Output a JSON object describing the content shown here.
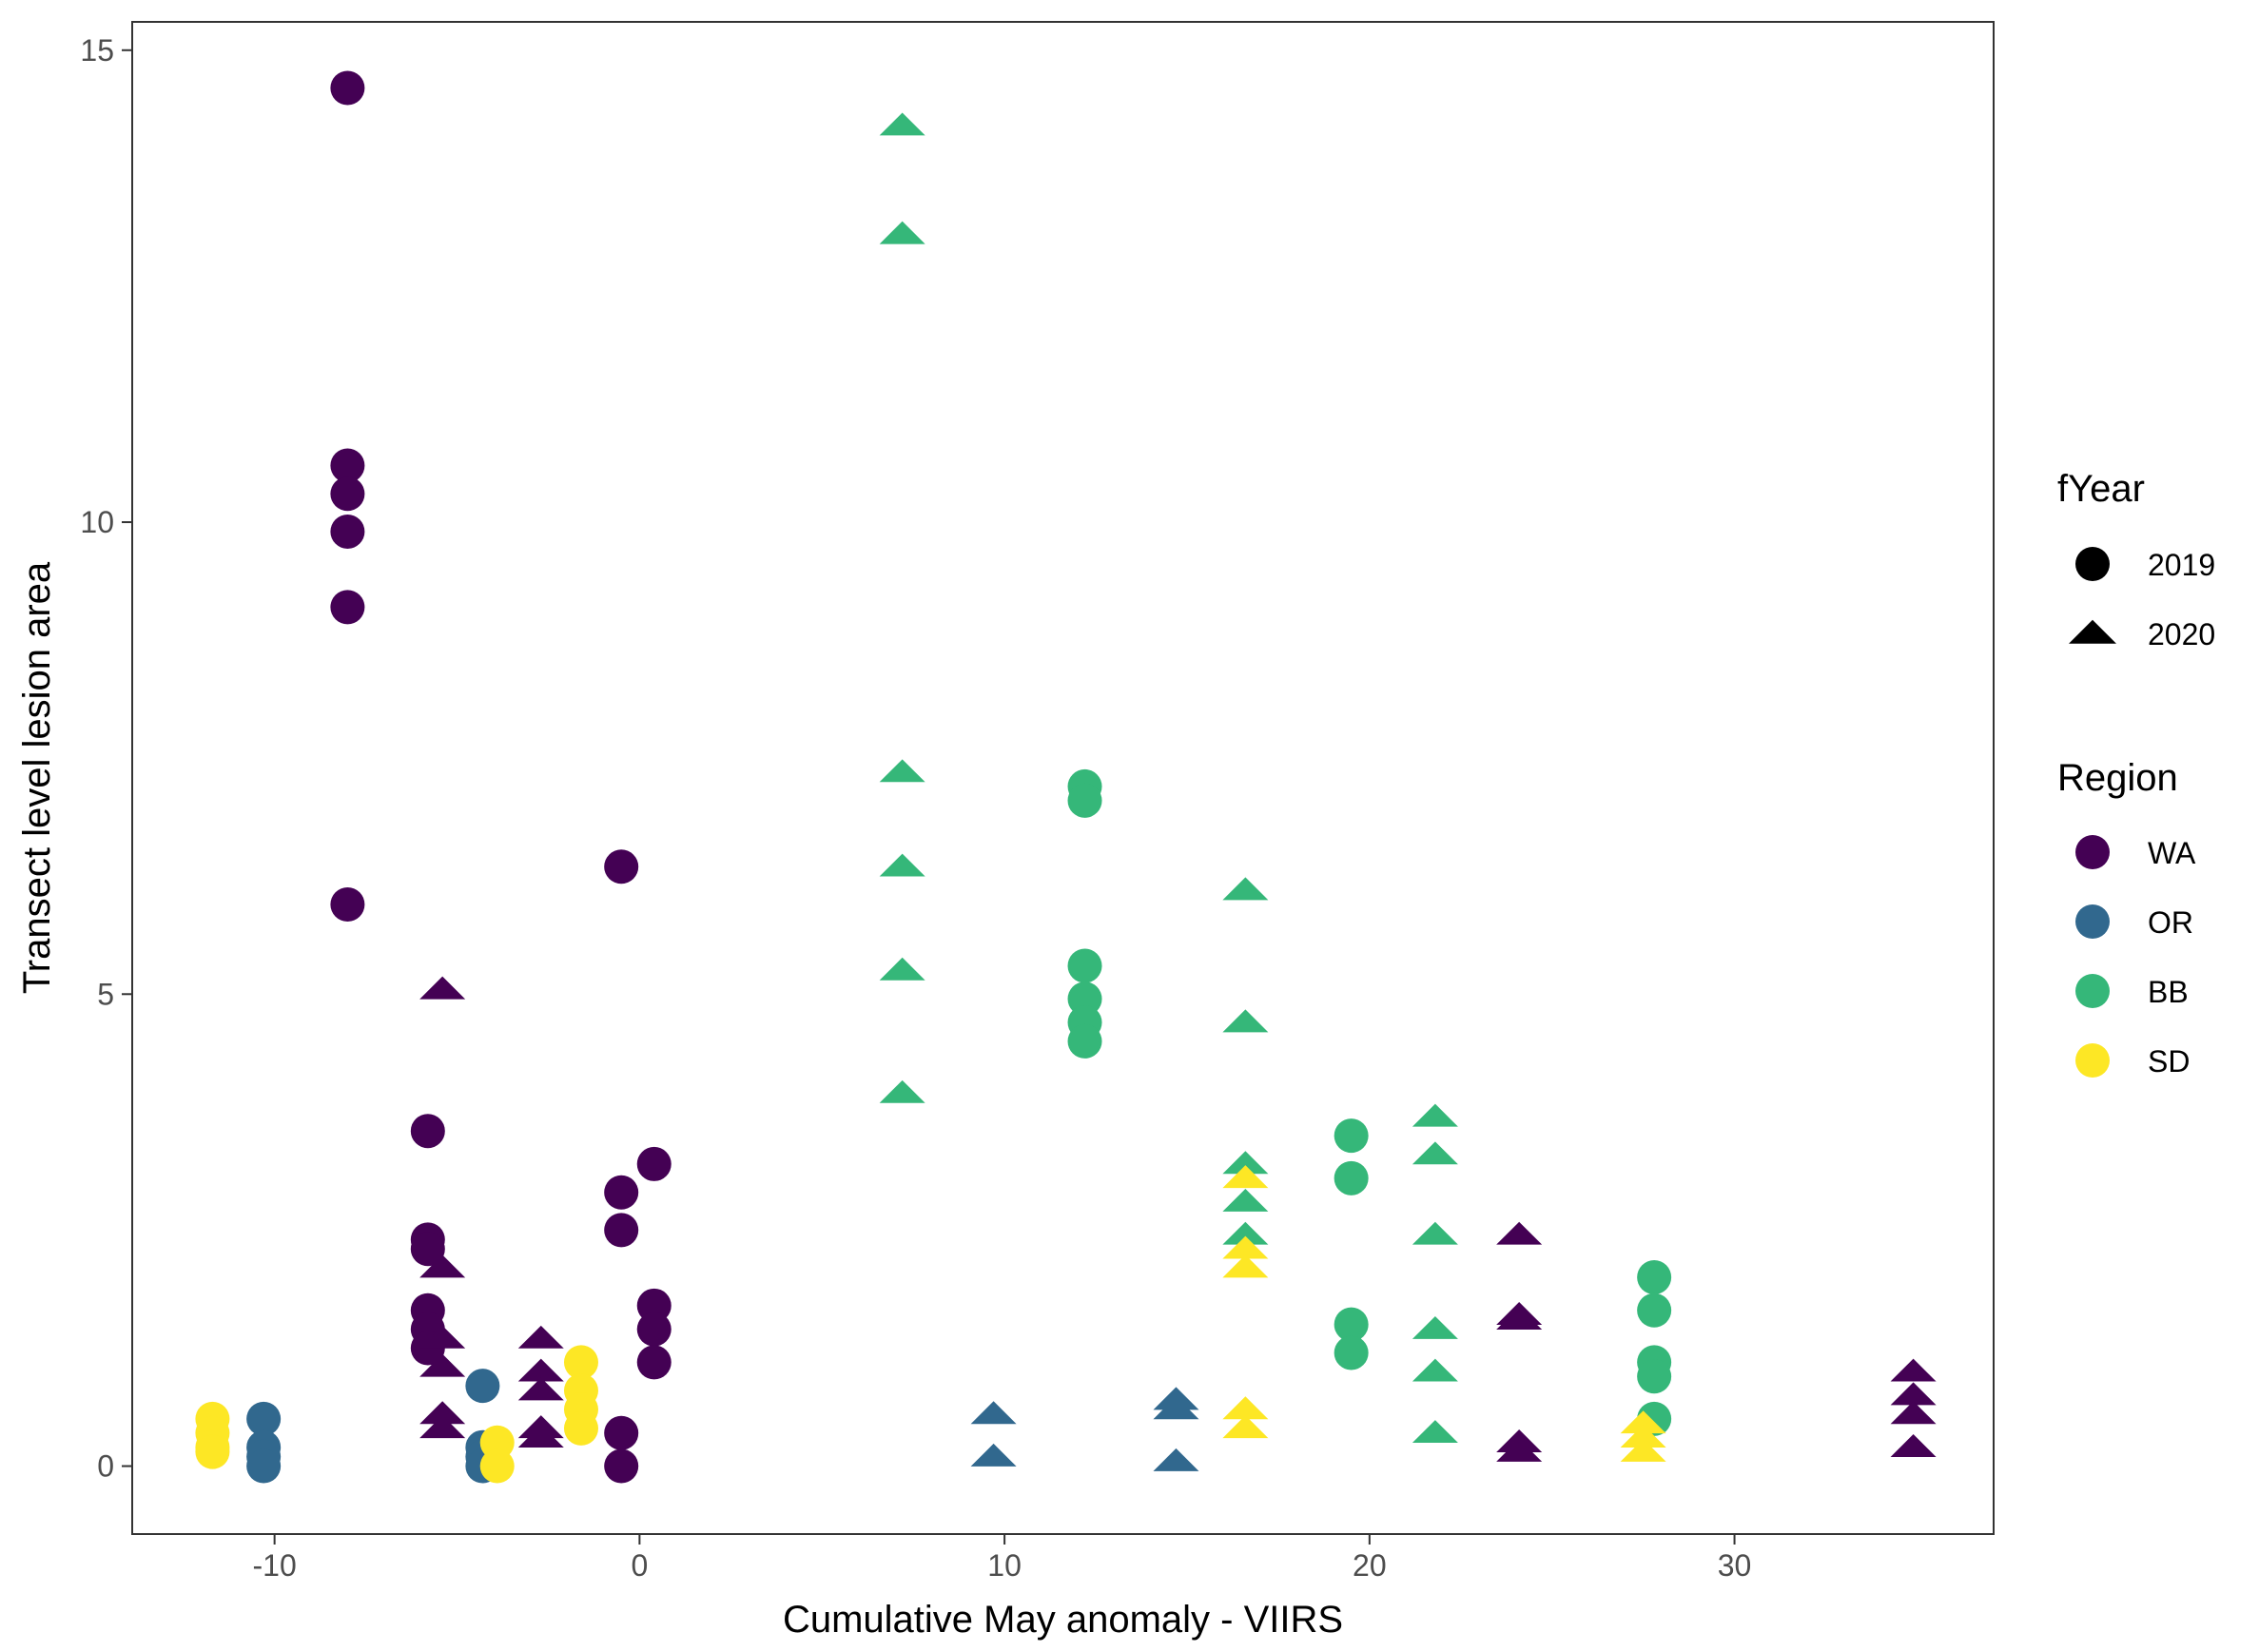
{
  "chart_data": {
    "type": "scatter",
    "xlabel": "Cumulative May anomaly - VIIRS",
    "ylabel": "Transect level lesion area",
    "xlim": [
      -13.9,
      37.1
    ],
    "ylim": [
      -0.72,
      15.3
    ],
    "x_ticks": [
      -10,
      0,
      10,
      20,
      30
    ],
    "y_ticks": [
      0,
      5,
      10,
      15
    ],
    "grid": false,
    "legend": {
      "placement": "right",
      "shape_title": "fYear",
      "shape_items": [
        {
          "label": "2019",
          "shape": "circle"
        },
        {
          "label": "2020",
          "shape": "triangle"
        }
      ],
      "color_title": "Region",
      "color_items": [
        {
          "label": "WA",
          "color": "#440154"
        },
        {
          "label": "OR",
          "color": "#31688E"
        },
        {
          "label": "BB",
          "color": "#35B779"
        },
        {
          "label": "SD",
          "color": "#FDE725"
        }
      ]
    },
    "series": [
      {
        "region": "WA",
        "year": "2019",
        "color": "#440154",
        "shape": "circle",
        "points": [
          [
            -8,
            14.6
          ],
          [
            -8,
            10.6
          ],
          [
            -8,
            10.3
          ],
          [
            -8,
            9.9
          ],
          [
            -8,
            9.1
          ],
          [
            -8,
            5.95
          ],
          [
            -5.8,
            3.55
          ],
          [
            -5.8,
            2.4
          ],
          [
            -5.8,
            2.3
          ],
          [
            -5.8,
            1.65
          ],
          [
            -5.8,
            1.45
          ],
          [
            -5.8,
            1.25
          ],
          [
            -0.5,
            6.35
          ],
          [
            -0.5,
            2.9
          ],
          [
            -0.5,
            2.5
          ],
          [
            -0.5,
            0.35
          ],
          [
            -0.5,
            0.0
          ],
          [
            0.4,
            3.2
          ],
          [
            0.4,
            1.7
          ],
          [
            0.4,
            1.45
          ],
          [
            0.4,
            1.1
          ]
        ]
      },
      {
        "region": "WA",
        "year": "2020",
        "color": "#440154",
        "shape": "triangle",
        "points": [
          [
            -5.4,
            5.05
          ],
          [
            -5.4,
            2.1
          ],
          [
            -5.4,
            1.35
          ],
          [
            -5.4,
            1.05
          ],
          [
            -5.4,
            0.55
          ],
          [
            -5.4,
            0.4
          ],
          [
            -2.7,
            1.35
          ],
          [
            -2.7,
            1.0
          ],
          [
            -2.7,
            0.8
          ],
          [
            -2.7,
            0.4
          ],
          [
            -2.7,
            0.3
          ],
          [
            24.1,
            2.45
          ],
          [
            24.1,
            1.6
          ],
          [
            24.1,
            1.55
          ],
          [
            24.1,
            0.25
          ],
          [
            24.1,
            0.15
          ],
          [
            34.9,
            1.0
          ],
          [
            34.9,
            0.75
          ],
          [
            34.9,
            0.55
          ],
          [
            34.9,
            0.2
          ]
        ]
      },
      {
        "region": "OR",
        "year": "2019",
        "color": "#31688E",
        "shape": "circle",
        "points": [
          [
            -10.3,
            0.5
          ],
          [
            -10.3,
            0.2
          ],
          [
            -10.3,
            0.1
          ],
          [
            -10.3,
            0.0
          ],
          [
            -4.3,
            0.85
          ],
          [
            -4.3,
            0.2
          ],
          [
            -4.3,
            0.1
          ],
          [
            -4.3,
            0.0
          ]
        ]
      },
      {
        "region": "OR",
        "year": "2020",
        "color": "#31688E",
        "shape": "triangle",
        "points": [
          [
            9.7,
            0.55
          ],
          [
            9.7,
            0.1
          ],
          [
            14.7,
            0.7
          ],
          [
            14.7,
            0.6
          ],
          [
            14.7,
            0.05
          ]
        ]
      },
      {
        "region": "BB",
        "year": "2019",
        "color": "#35B779",
        "shape": "circle",
        "points": [
          [
            12.2,
            7.2
          ],
          [
            12.2,
            7.05
          ],
          [
            12.2,
            5.3
          ],
          [
            12.2,
            4.95
          ],
          [
            12.2,
            4.7
          ],
          [
            12.2,
            4.5
          ],
          [
            19.5,
            3.5
          ],
          [
            19.5,
            3.05
          ],
          [
            19.5,
            1.5
          ],
          [
            19.5,
            1.2
          ],
          [
            27.8,
            2.0
          ],
          [
            27.8,
            1.65
          ],
          [
            27.8,
            1.1
          ],
          [
            27.8,
            0.95
          ],
          [
            27.8,
            0.5
          ]
        ]
      },
      {
        "region": "BB",
        "year": "2020",
        "color": "#35B779",
        "shape": "triangle",
        "points": [
          [
            7.2,
            14.2
          ],
          [
            7.2,
            13.05
          ],
          [
            7.2,
            7.35
          ],
          [
            7.2,
            6.35
          ],
          [
            7.2,
            5.25
          ],
          [
            7.2,
            3.95
          ],
          [
            16.6,
            6.1
          ],
          [
            16.6,
            4.7
          ],
          [
            16.6,
            3.2
          ],
          [
            16.6,
            2.8
          ],
          [
            16.6,
            2.45
          ],
          [
            21.8,
            3.7
          ],
          [
            21.8,
            3.3
          ],
          [
            21.8,
            2.45
          ],
          [
            21.8,
            1.45
          ],
          [
            21.8,
            1.0
          ],
          [
            21.8,
            0.35
          ]
        ]
      },
      {
        "region": "SD",
        "year": "2019",
        "color": "#FDE725",
        "shape": "circle",
        "points": [
          [
            -11.7,
            0.5
          ],
          [
            -11.7,
            0.35
          ],
          [
            -11.7,
            0.2
          ],
          [
            -11.7,
            0.15
          ],
          [
            -3.9,
            0.25
          ],
          [
            -3.9,
            0.0
          ],
          [
            -1.6,
            1.1
          ],
          [
            -1.6,
            0.8
          ],
          [
            -1.6,
            0.6
          ],
          [
            -1.6,
            0.4
          ]
        ]
      },
      {
        "region": "SD",
        "year": "2020",
        "color": "#FDE725",
        "shape": "triangle",
        "points": [
          [
            16.6,
            3.05
          ],
          [
            16.6,
            2.3
          ],
          [
            16.6,
            2.1
          ],
          [
            16.6,
            0.6
          ],
          [
            16.6,
            0.4
          ],
          [
            27.5,
            0.45
          ],
          [
            27.5,
            0.3
          ],
          [
            27.5,
            0.15
          ]
        ]
      }
    ]
  }
}
